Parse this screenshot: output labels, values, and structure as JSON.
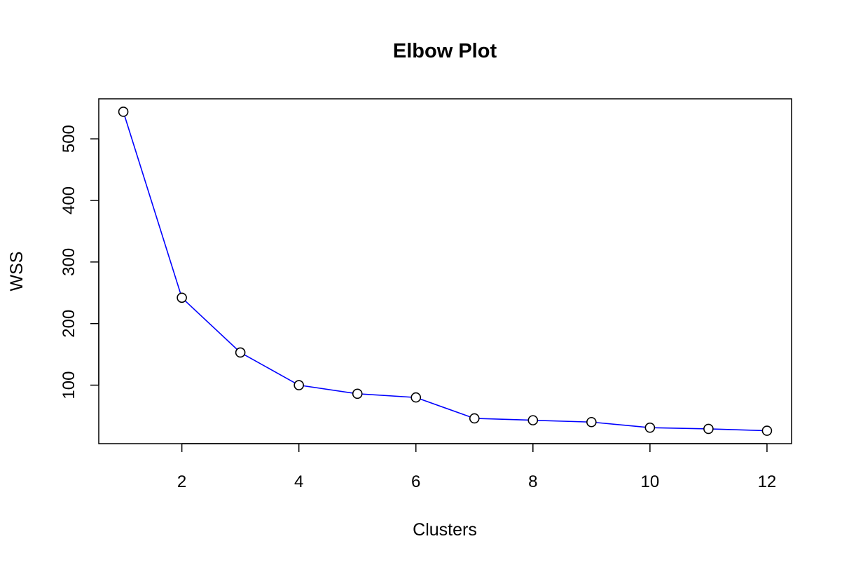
{
  "chart_data": {
    "type": "line",
    "title": "Elbow Plot",
    "xlabel": "Clusters",
    "ylabel": "WSS",
    "x": [
      1,
      2,
      3,
      4,
      5,
      6,
      7,
      8,
      9,
      10,
      11,
      12
    ],
    "series": [
      {
        "values": [
          544,
          242,
          153,
          100,
          86,
          80,
          46,
          43,
          40,
          31,
          29,
          26
        ]
      }
    ],
    "xlim": [
      0.58,
      12.42
    ],
    "ylim": [
      5,
      565
    ],
    "x_ticks": [
      2,
      4,
      6,
      8,
      10,
      12
    ],
    "y_ticks": [
      100,
      200,
      300,
      400,
      500
    ],
    "x_tick_labels": [
      "2",
      "4",
      "6",
      "8",
      "10",
      "12"
    ],
    "y_tick_labels": [
      "100",
      "200",
      "300",
      "400",
      "500"
    ],
    "grid": false,
    "legend": "none",
    "line_color": "#0000ff",
    "marker": "open-circle",
    "marker_color": "#000000"
  }
}
